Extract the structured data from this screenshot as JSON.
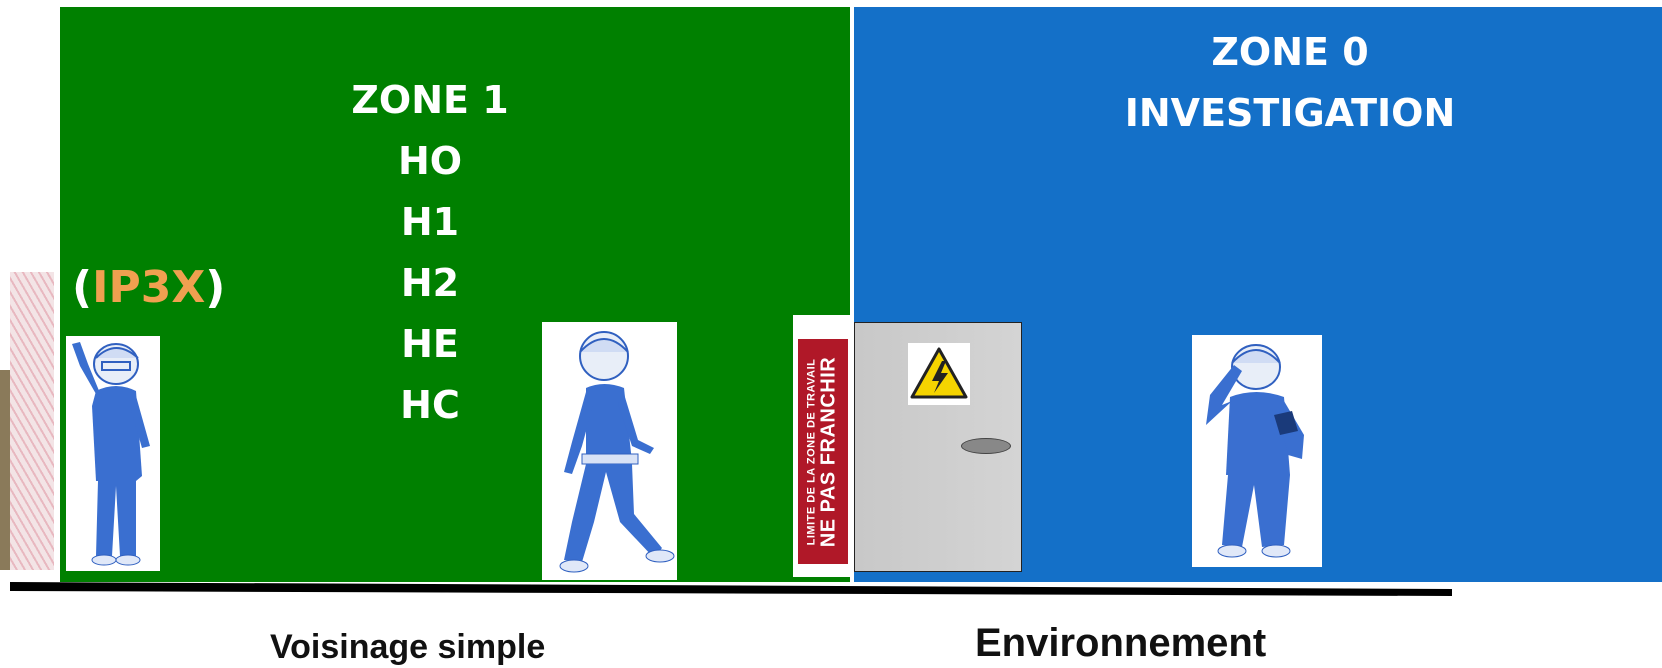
{
  "zone1": {
    "lines": [
      "ZONE 1",
      "HO",
      "H1",
      "H2",
      "HE",
      "HC"
    ],
    "color": "#008000"
  },
  "zone0": {
    "lines": [
      "ZONE 0",
      "INVESTIGATION"
    ],
    "color": "#1470c8"
  },
  "ip_label": {
    "open": "(",
    "code": "IP3X",
    "close": ")",
    "code_color": "#f0a050"
  },
  "sign": {
    "line_small": "LIMITE DE LA ZONE DE TRAVAIL",
    "line_big": "NE PAS FRANCHIR",
    "color": "#b01828"
  },
  "captions": {
    "left": "Voisinage simple",
    "right": "Environnement"
  },
  "icons": [
    "hatched-barrier-icon",
    "worker-waving-icon",
    "worker-walking-icon",
    "worker-saluting-icon",
    "high-voltage-warning-icon",
    "door-handle-icon"
  ]
}
